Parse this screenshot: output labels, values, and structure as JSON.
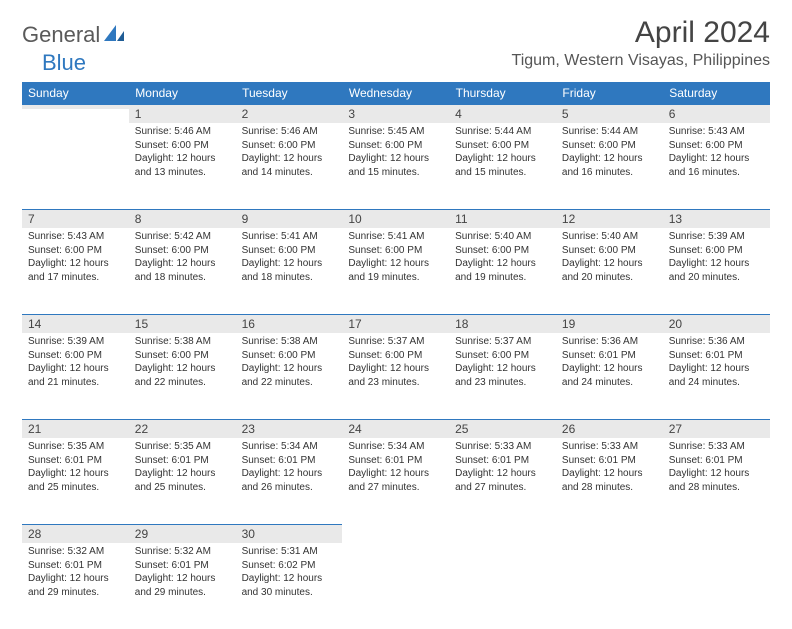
{
  "brand": {
    "part1": "General",
    "part2": "Blue"
  },
  "title": "April 2024",
  "location": "Tigum, Western Visayas, Philippines",
  "colors": {
    "header_bg": "#2f78bf",
    "header_text": "#ffffff",
    "daynum_bg": "#e9e9e9",
    "text": "#333333",
    "brand_gray": "#5a5a5a",
    "brand_blue": "#2f78bf"
  },
  "columns": [
    "Sunday",
    "Monday",
    "Tuesday",
    "Wednesday",
    "Thursday",
    "Friday",
    "Saturday"
  ],
  "weeks": [
    [
      {
        "n": "",
        "sr": "",
        "ss": "",
        "dl": ""
      },
      {
        "n": "1",
        "sr": "5:46 AM",
        "ss": "6:00 PM",
        "dl": "12 hours and 13 minutes."
      },
      {
        "n": "2",
        "sr": "5:46 AM",
        "ss": "6:00 PM",
        "dl": "12 hours and 14 minutes."
      },
      {
        "n": "3",
        "sr": "5:45 AM",
        "ss": "6:00 PM",
        "dl": "12 hours and 15 minutes."
      },
      {
        "n": "4",
        "sr": "5:44 AM",
        "ss": "6:00 PM",
        "dl": "12 hours and 15 minutes."
      },
      {
        "n": "5",
        "sr": "5:44 AM",
        "ss": "6:00 PM",
        "dl": "12 hours and 16 minutes."
      },
      {
        "n": "6",
        "sr": "5:43 AM",
        "ss": "6:00 PM",
        "dl": "12 hours and 16 minutes."
      }
    ],
    [
      {
        "n": "7",
        "sr": "5:43 AM",
        "ss": "6:00 PM",
        "dl": "12 hours and 17 minutes."
      },
      {
        "n": "8",
        "sr": "5:42 AM",
        "ss": "6:00 PM",
        "dl": "12 hours and 18 minutes."
      },
      {
        "n": "9",
        "sr": "5:41 AM",
        "ss": "6:00 PM",
        "dl": "12 hours and 18 minutes."
      },
      {
        "n": "10",
        "sr": "5:41 AM",
        "ss": "6:00 PM",
        "dl": "12 hours and 19 minutes."
      },
      {
        "n": "11",
        "sr": "5:40 AM",
        "ss": "6:00 PM",
        "dl": "12 hours and 19 minutes."
      },
      {
        "n": "12",
        "sr": "5:40 AM",
        "ss": "6:00 PM",
        "dl": "12 hours and 20 minutes."
      },
      {
        "n": "13",
        "sr": "5:39 AM",
        "ss": "6:00 PM",
        "dl": "12 hours and 20 minutes."
      }
    ],
    [
      {
        "n": "14",
        "sr": "5:39 AM",
        "ss": "6:00 PM",
        "dl": "12 hours and 21 minutes."
      },
      {
        "n": "15",
        "sr": "5:38 AM",
        "ss": "6:00 PM",
        "dl": "12 hours and 22 minutes."
      },
      {
        "n": "16",
        "sr": "5:38 AM",
        "ss": "6:00 PM",
        "dl": "12 hours and 22 minutes."
      },
      {
        "n": "17",
        "sr": "5:37 AM",
        "ss": "6:00 PM",
        "dl": "12 hours and 23 minutes."
      },
      {
        "n": "18",
        "sr": "5:37 AM",
        "ss": "6:00 PM",
        "dl": "12 hours and 23 minutes."
      },
      {
        "n": "19",
        "sr": "5:36 AM",
        "ss": "6:01 PM",
        "dl": "12 hours and 24 minutes."
      },
      {
        "n": "20",
        "sr": "5:36 AM",
        "ss": "6:01 PM",
        "dl": "12 hours and 24 minutes."
      }
    ],
    [
      {
        "n": "21",
        "sr": "5:35 AM",
        "ss": "6:01 PM",
        "dl": "12 hours and 25 minutes."
      },
      {
        "n": "22",
        "sr": "5:35 AM",
        "ss": "6:01 PM",
        "dl": "12 hours and 25 minutes."
      },
      {
        "n": "23",
        "sr": "5:34 AM",
        "ss": "6:01 PM",
        "dl": "12 hours and 26 minutes."
      },
      {
        "n": "24",
        "sr": "5:34 AM",
        "ss": "6:01 PM",
        "dl": "12 hours and 27 minutes."
      },
      {
        "n": "25",
        "sr": "5:33 AM",
        "ss": "6:01 PM",
        "dl": "12 hours and 27 minutes."
      },
      {
        "n": "26",
        "sr": "5:33 AM",
        "ss": "6:01 PM",
        "dl": "12 hours and 28 minutes."
      },
      {
        "n": "27",
        "sr": "5:33 AM",
        "ss": "6:01 PM",
        "dl": "12 hours and 28 minutes."
      }
    ],
    [
      {
        "n": "28",
        "sr": "5:32 AM",
        "ss": "6:01 PM",
        "dl": "12 hours and 29 minutes."
      },
      {
        "n": "29",
        "sr": "5:32 AM",
        "ss": "6:01 PM",
        "dl": "12 hours and 29 minutes."
      },
      {
        "n": "30",
        "sr": "5:31 AM",
        "ss": "6:02 PM",
        "dl": "12 hours and 30 minutes."
      },
      {
        "n": "",
        "sr": "",
        "ss": "",
        "dl": ""
      },
      {
        "n": "",
        "sr": "",
        "ss": "",
        "dl": ""
      },
      {
        "n": "",
        "sr": "",
        "ss": "",
        "dl": ""
      },
      {
        "n": "",
        "sr": "",
        "ss": "",
        "dl": ""
      }
    ]
  ],
  "labels": {
    "sunrise": "Sunrise:",
    "sunset": "Sunset:",
    "daylight": "Daylight:"
  }
}
